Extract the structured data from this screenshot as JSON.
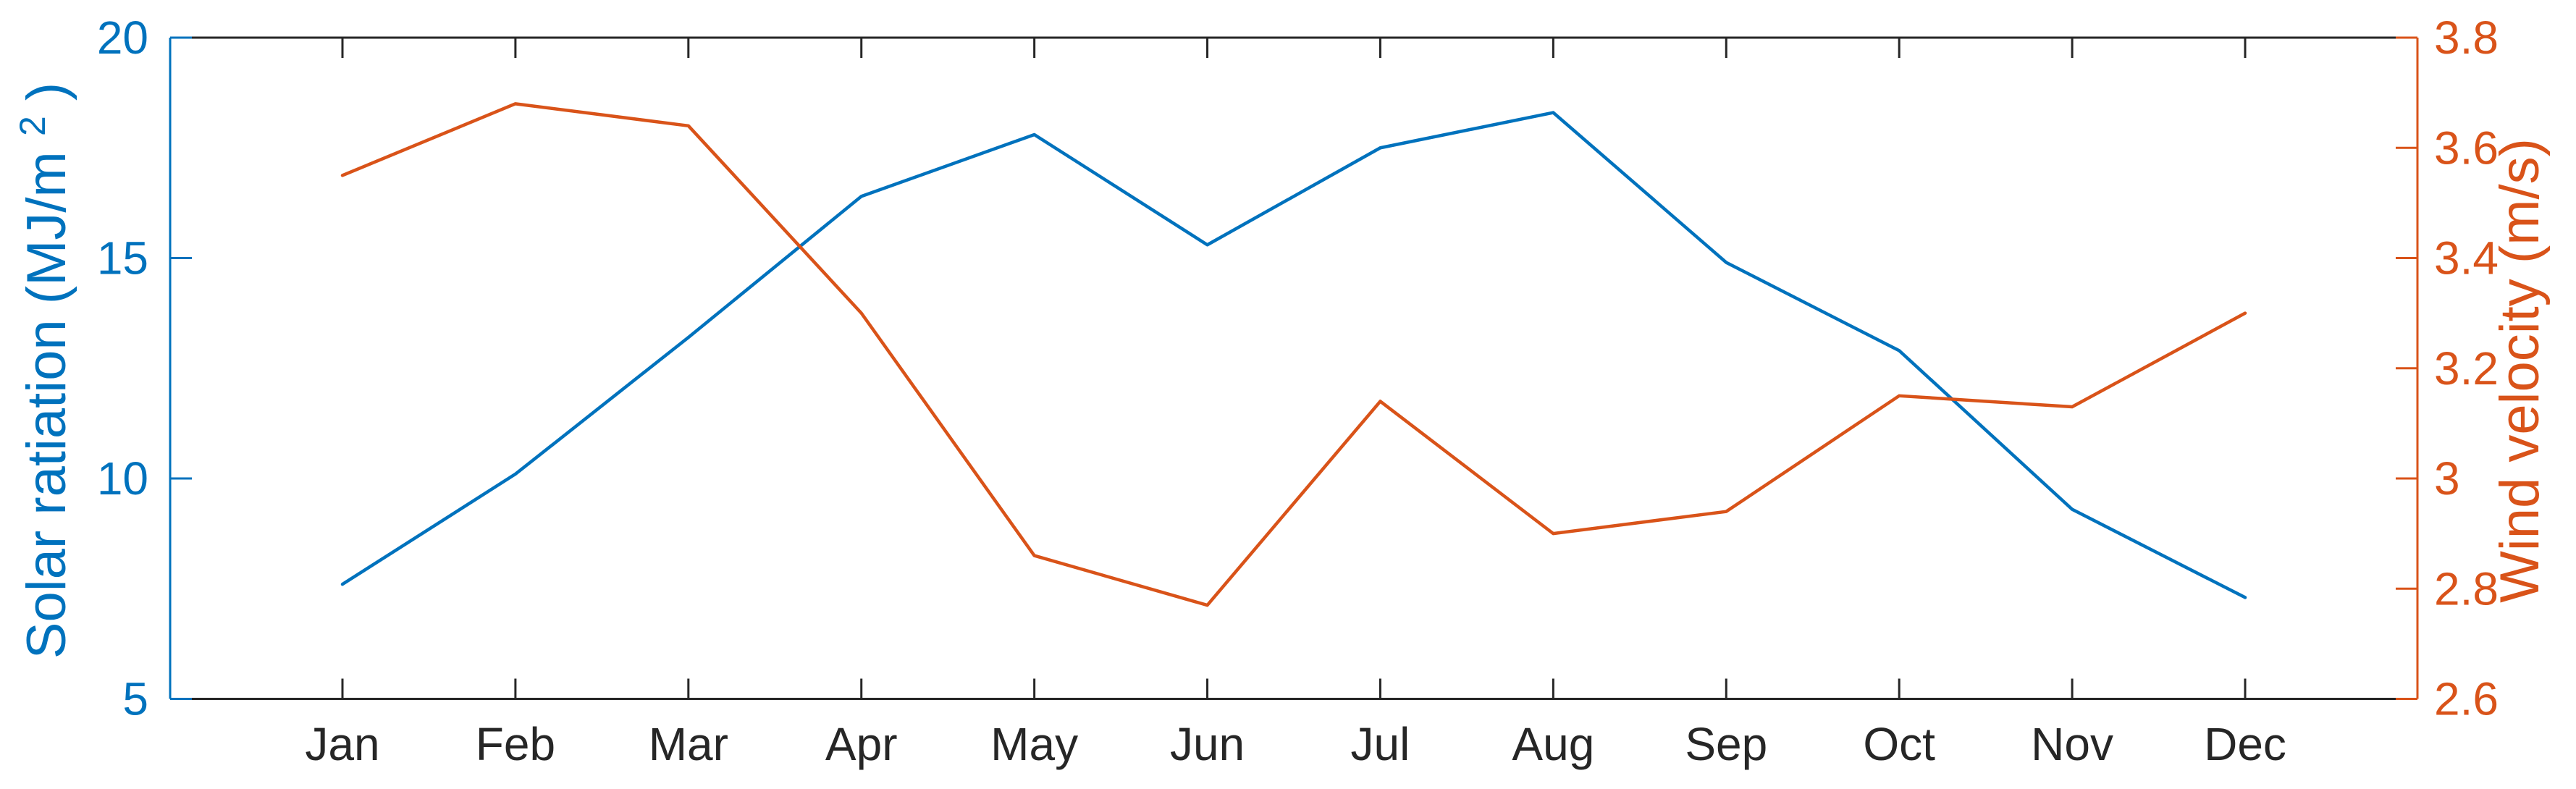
{
  "chart_data": {
    "type": "line",
    "categories": [
      "Jan",
      "Feb",
      "Mar",
      "Apr",
      "May",
      "Jun",
      "Jul",
      "Aug",
      "Sep",
      "Oct",
      "Nov",
      "Dec"
    ],
    "series": [
      {
        "name": "Solar ratiation",
        "axis": "left",
        "color": "#0072BD",
        "values": [
          7.6,
          10.1,
          13.2,
          16.4,
          17.8,
          15.3,
          17.5,
          18.3,
          14.9,
          12.9,
          9.3,
          7.3
        ]
      },
      {
        "name": "Wind velocity",
        "axis": "right",
        "color": "#D95319",
        "values": [
          3.55,
          3.68,
          3.64,
          3.3,
          2.86,
          2.77,
          3.14,
          2.9,
          2.94,
          3.15,
          3.13,
          3.3
        ]
      }
    ],
    "left_axis": {
      "label_pre": "Solar ratiation (MJ/m",
      "label_sup": "2",
      "label_post": ")",
      "color": "#0072BD",
      "range": [
        5,
        20
      ],
      "ticks": [
        5,
        10,
        15,
        20
      ],
      "tick_labels": [
        "5",
        "10",
        "15",
        "20"
      ]
    },
    "right_axis": {
      "label": "Wind velocity (m/s)",
      "color": "#D95319",
      "range": [
        2.6,
        3.8
      ],
      "ticks": [
        2.6,
        2.8,
        3.0,
        3.2,
        3.4,
        3.6,
        3.8
      ],
      "tick_labels": [
        "2.6",
        "2.8",
        "3",
        "3.2",
        "3.4",
        "3.6",
        "3.8"
      ]
    },
    "x_axis": {
      "color": "#262626"
    },
    "grid": false,
    "legend": "none",
    "background": "#ffffff"
  }
}
